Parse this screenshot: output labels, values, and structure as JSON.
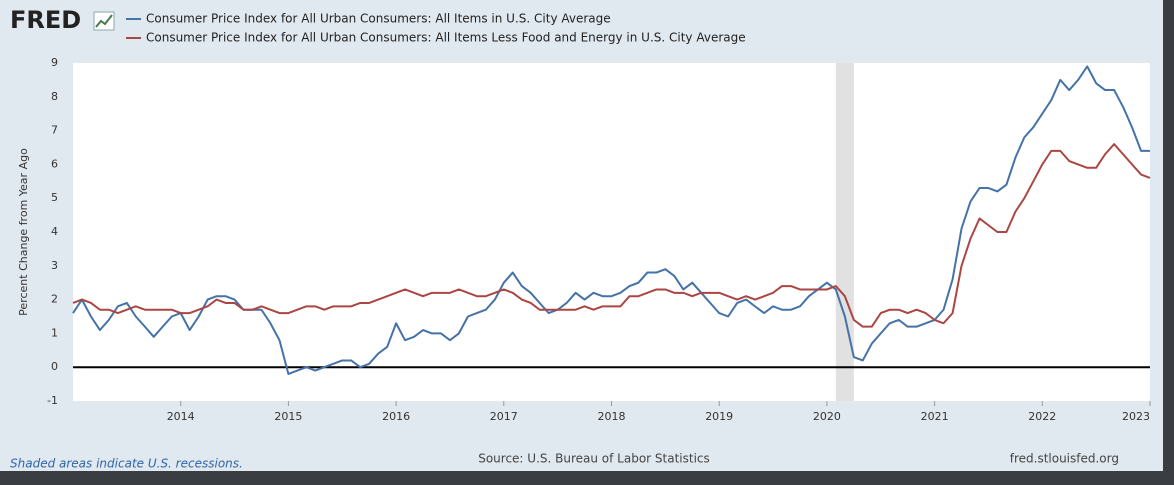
{
  "logo": "FRED",
  "chart_data": {
    "type": "line",
    "ylabel": "Percent Change from Year Ago",
    "x": [
      2013,
      2013.083,
      2013.167,
      2013.25,
      2013.333,
      2013.417,
      2013.5,
      2013.583,
      2013.667,
      2013.75,
      2013.833,
      2013.917,
      2014,
      2014.083,
      2014.167,
      2014.25,
      2014.333,
      2014.417,
      2014.5,
      2014.583,
      2014.667,
      2014.75,
      2014.833,
      2014.917,
      2015,
      2015.083,
      2015.167,
      2015.25,
      2015.333,
      2015.417,
      2015.5,
      2015.583,
      2015.667,
      2015.75,
      2015.833,
      2015.917,
      2016,
      2016.083,
      2016.167,
      2016.25,
      2016.333,
      2016.417,
      2016.5,
      2016.583,
      2016.667,
      2016.75,
      2016.833,
      2016.917,
      2017,
      2017.083,
      2017.167,
      2017.25,
      2017.333,
      2017.417,
      2017.5,
      2017.583,
      2017.667,
      2017.75,
      2017.833,
      2017.917,
      2018,
      2018.083,
      2018.167,
      2018.25,
      2018.333,
      2018.417,
      2018.5,
      2018.583,
      2018.667,
      2018.75,
      2018.833,
      2018.917,
      2019,
      2019.083,
      2019.167,
      2019.25,
      2019.333,
      2019.417,
      2019.5,
      2019.583,
      2019.667,
      2019.75,
      2019.833,
      2019.917,
      2020,
      2020.083,
      2020.167,
      2020.25,
      2020.333,
      2020.417,
      2020.5,
      2020.583,
      2020.667,
      2020.75,
      2020.833,
      2020.917,
      2021,
      2021.083,
      2021.167,
      2021.25,
      2021.333,
      2021.417,
      2021.5,
      2021.583,
      2021.667,
      2021.75,
      2021.833,
      2021.917,
      2022,
      2022.083,
      2022.167,
      2022.25,
      2022.333,
      2022.417,
      2022.5,
      2022.583,
      2022.667,
      2022.75,
      2022.833,
      2022.917,
      2023
    ],
    "series": [
      {
        "name": "Consumer Price Index for All Urban Consumers: All Items in U.S. City Average",
        "color": "#4572a7",
        "values": [
          1.6,
          2.0,
          1.5,
          1.1,
          1.4,
          1.8,
          1.9,
          1.5,
          1.2,
          0.9,
          1.2,
          1.5,
          1.6,
          1.1,
          1.5,
          2.0,
          2.1,
          2.1,
          2.0,
          1.7,
          1.7,
          1.7,
          1.3,
          0.8,
          -0.2,
          -0.1,
          0.0,
          -0.1,
          0.0,
          0.1,
          0.2,
          0.2,
          0.0,
          0.1,
          0.4,
          0.6,
          1.3,
          0.8,
          0.9,
          1.1,
          1.0,
          1.0,
          0.8,
          1.0,
          1.5,
          1.6,
          1.7,
          2.0,
          2.5,
          2.8,
          2.4,
          2.2,
          1.9,
          1.6,
          1.7,
          1.9,
          2.2,
          2.0,
          2.2,
          2.1,
          2.1,
          2.2,
          2.4,
          2.5,
          2.8,
          2.8,
          2.9,
          2.7,
          2.3,
          2.5,
          2.2,
          1.9,
          1.6,
          1.5,
          1.9,
          2.0,
          1.8,
          1.6,
          1.8,
          1.7,
          1.7,
          1.8,
          2.1,
          2.3,
          2.5,
          2.3,
          1.5,
          0.3,
          0.2,
          0.7,
          1.0,
          1.3,
          1.4,
          1.2,
          1.2,
          1.3,
          1.4,
          1.7,
          2.6,
          4.1,
          4.9,
          5.3,
          5.3,
          5.2,
          5.4,
          6.2,
          6.8,
          7.1,
          7.5,
          7.9,
          8.5,
          8.2,
          8.5,
          8.9,
          8.4,
          8.2,
          8.2,
          7.7,
          7.1,
          6.4,
          6.4
        ]
      },
      {
        "name": "Consumer Price Index for All Urban Consumers: All Items Less Food and Energy in U.S. City Average",
        "color": "#aa4643",
        "values": [
          1.9,
          2.0,
          1.9,
          1.7,
          1.7,
          1.6,
          1.7,
          1.8,
          1.7,
          1.7,
          1.7,
          1.7,
          1.6,
          1.6,
          1.7,
          1.8,
          2.0,
          1.9,
          1.9,
          1.7,
          1.7,
          1.8,
          1.7,
          1.6,
          1.6,
          1.7,
          1.8,
          1.8,
          1.7,
          1.8,
          1.8,
          1.8,
          1.9,
          1.9,
          2.0,
          2.1,
          2.2,
          2.3,
          2.2,
          2.1,
          2.2,
          2.2,
          2.2,
          2.3,
          2.2,
          2.1,
          2.1,
          2.2,
          2.3,
          2.2,
          2.0,
          1.9,
          1.7,
          1.7,
          1.7,
          1.7,
          1.7,
          1.8,
          1.7,
          1.8,
          1.8,
          1.8,
          2.1,
          2.1,
          2.2,
          2.3,
          2.3,
          2.2,
          2.2,
          2.1,
          2.2,
          2.2,
          2.2,
          2.1,
          2.0,
          2.1,
          2.0,
          2.1,
          2.2,
          2.4,
          2.4,
          2.3,
          2.3,
          2.3,
          2.3,
          2.4,
          2.1,
          1.4,
          1.2,
          1.2,
          1.6,
          1.7,
          1.7,
          1.6,
          1.7,
          1.6,
          1.4,
          1.3,
          1.6,
          3.0,
          3.8,
          4.4,
          4.2,
          4.0,
          4.0,
          4.6,
          5.0,
          5.5,
          6.0,
          6.4,
          6.4,
          6.1,
          6.0,
          5.9,
          5.9,
          6.3,
          6.6,
          6.3,
          6.0,
          5.7,
          5.6
        ]
      }
    ],
    "xlim": [
      2013,
      2023
    ],
    "xticks": [
      2014,
      2015,
      2016,
      2017,
      2018,
      2019,
      2020,
      2021,
      2022,
      2023
    ],
    "ylim": [
      -1,
      9
    ],
    "yticks": [
      -1,
      0,
      1,
      2,
      3,
      4,
      5,
      6,
      7,
      8,
      9
    ],
    "recessions": [
      [
        2020.083,
        2020.25
      ]
    ],
    "zero_line": true,
    "recession_note": "Shaded areas indicate U.S. recessions.",
    "source": "Source: U.S. Bureau of Labor Statistics",
    "site": "fred.stlouisfed.org"
  }
}
